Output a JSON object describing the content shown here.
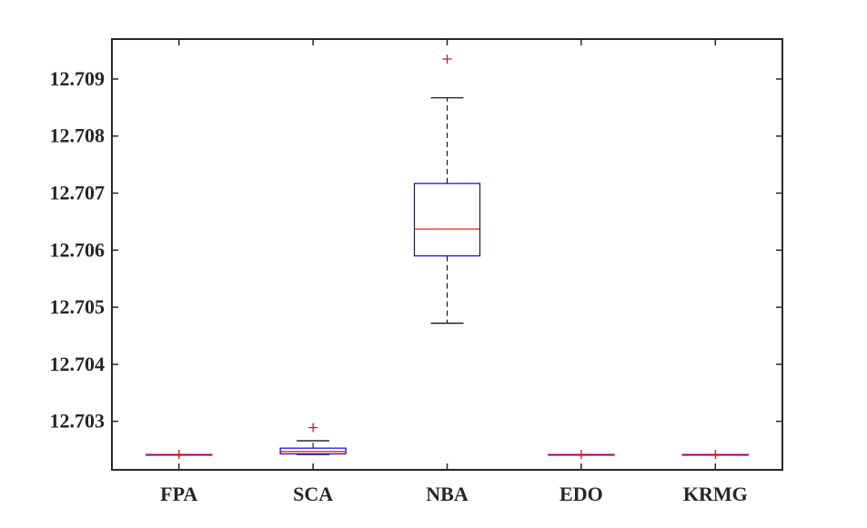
{
  "chart_data": {
    "type": "box",
    "title": "",
    "xlabel": "",
    "ylabel": "",
    "categories": [
      "FPA",
      "SCA",
      "NBA",
      "EDO",
      "KRMG"
    ],
    "ylim": [
      12.70215,
      12.7097
    ],
    "yticks": [
      12.703,
      12.704,
      12.705,
      12.706,
      12.707,
      12.708,
      12.709
    ],
    "ytick_labels": [
      "12.703",
      "12.704",
      "12.705",
      "12.706",
      "12.707",
      "12.708",
      "12.709"
    ],
    "grid": false,
    "boxes": [
      {
        "category": "FPA",
        "whisker_low": 12.70242,
        "q1": 12.70242,
        "median": 12.70242,
        "q3": 12.70242,
        "whisker_high": 12.70242,
        "outliers": [
          12.70242
        ]
      },
      {
        "category": "SCA",
        "whisker_low": 12.70242,
        "q1": 12.70243,
        "median": 12.70247,
        "q3": 12.70253,
        "whisker_high": 12.70266,
        "outliers": [
          12.70289
        ]
      },
      {
        "category": "NBA",
        "whisker_low": 12.70472,
        "q1": 12.7059,
        "median": 12.70637,
        "q3": 12.70717,
        "whisker_high": 12.70867,
        "outliers": [
          12.70935
        ]
      },
      {
        "category": "EDO",
        "whisker_low": 12.70242,
        "q1": 12.70242,
        "median": 12.70242,
        "q3": 12.70242,
        "whisker_high": 12.70242,
        "outliers": [
          12.70242
        ]
      },
      {
        "category": "KRMG",
        "whisker_low": 12.70242,
        "q1": 12.70242,
        "median": 12.70242,
        "q3": 12.70242,
        "whisker_high": 12.70242,
        "outliers": [
          12.70242
        ]
      }
    ],
    "colors": {
      "box": "#0000ff",
      "median": "#ff0000",
      "whisker": "#000000",
      "outlier": "#ff0000",
      "axis": "#262626"
    }
  }
}
